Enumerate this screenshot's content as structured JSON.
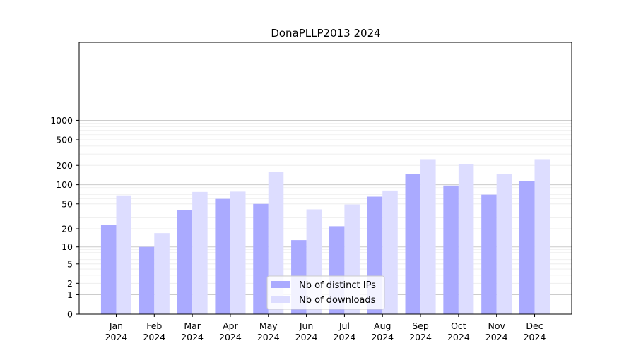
{
  "chart_data": {
    "type": "bar",
    "title": "DonaPLLP2013 2024",
    "xlabel": "",
    "ylabel": "",
    "yscale": "symlog",
    "ylim": [
      0,
      1200
    ],
    "grid": "horizontal",
    "legend_position": "bottom-center",
    "categories": [
      [
        "Jan",
        "2024"
      ],
      [
        "Feb",
        "2024"
      ],
      [
        "Mar",
        "2024"
      ],
      [
        "Apr",
        "2024"
      ],
      [
        "May",
        "2024"
      ],
      [
        "Jun",
        "2024"
      ],
      [
        "Jul",
        "2024"
      ],
      [
        "Aug",
        "2024"
      ],
      [
        "Sep",
        "2024"
      ],
      [
        "Oct",
        "2024"
      ],
      [
        "Nov",
        "2024"
      ],
      [
        "Dec",
        "2024"
      ]
    ],
    "yticks": [
      "0",
      "1",
      "2",
      "5",
      "10",
      "20",
      "50",
      "100",
      "200",
      "500",
      "1000"
    ],
    "series": [
      {
        "name": "Nb of distinct IPs",
        "color": "#aaaaff",
        "values": [
          23,
          10,
          40,
          60,
          50,
          13,
          22,
          65,
          145,
          97,
          70,
          115
        ]
      },
      {
        "name": "Nb of downloads",
        "color": "#ddddff",
        "values": [
          68,
          17,
          77,
          78,
          160,
          41,
          49,
          81,
          250,
          210,
          145,
          250
        ]
      }
    ]
  }
}
